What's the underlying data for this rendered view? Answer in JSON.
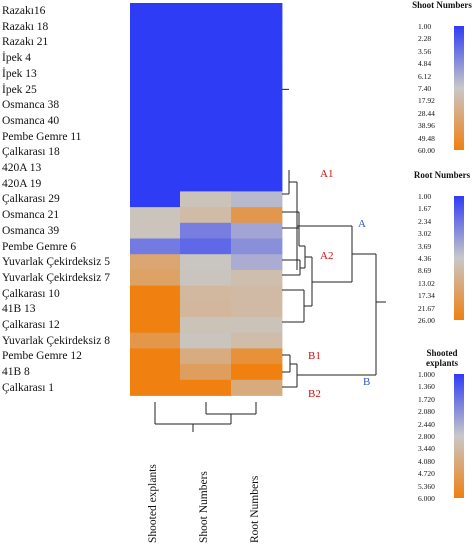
{
  "chart_data": {
    "type": "heatmap",
    "rows": [
      "Razakı16",
      "Razakı 18",
      "Razakı 21",
      "İpek 4",
      "İpek 13",
      "İpek 25",
      "Osmanca 38",
      "Osmanca 40",
      "Pembe Gemre 11",
      "Çalkarası 18",
      "420A 13",
      "420A 19",
      "Çalkarası 29",
      "Osmanca 21",
      "Osmanca 39",
      "Pembe Gemre 6",
      "Yuvarlak Çekirdeksiz 5",
      "Yuvarlak Çekirdeksiz 7",
      "Çalkarası 10",
      "41B 13",
      "Çalkarası 12",
      "Yuvarlak Çekirdeksiz 8",
      "Pembe Gemre 12",
      "41B 8",
      "Çalkarası 1"
    ],
    "columns": [
      "Shooted explants",
      "Shoot Numbers",
      "Root Numbers"
    ],
    "values": [
      [
        1.0,
        1.0,
        1.0
      ],
      [
        1.0,
        1.0,
        1.0
      ],
      [
        1.0,
        1.0,
        1.0
      ],
      [
        1.0,
        1.0,
        1.0
      ],
      [
        1.0,
        1.0,
        1.0
      ],
      [
        1.0,
        1.0,
        1.0
      ],
      [
        1.0,
        1.0,
        1.0
      ],
      [
        1.0,
        1.0,
        1.0
      ],
      [
        1.0,
        1.0,
        1.0
      ],
      [
        1.0,
        1.0,
        1.0
      ],
      [
        1.0,
        1.0,
        1.0
      ],
      [
        1.0,
        1.0,
        1.0
      ],
      [
        1.0,
        12.0,
        4.0
      ],
      [
        3.0,
        17.0,
        19.0
      ],
      [
        3.0,
        4.0,
        3.5
      ],
      [
        1.8,
        3.0,
        3.0
      ],
      [
        4.3,
        9.0,
        3.7
      ],
      [
        4.5,
        10.0,
        7.5
      ],
      [
        6.0,
        19.0,
        8.5
      ],
      [
        6.0,
        20.0,
        8.5
      ],
      [
        6.0,
        12.0,
        6.0
      ],
      [
        5.0,
        10.0,
        8.0
      ],
      [
        6.0,
        28.0,
        21.0
      ],
      [
        6.0,
        38.0,
        26.0
      ],
      [
        6.0,
        60.0,
        13.0
      ]
    ],
    "scales": [
      {
        "title": "Shoot Numbers",
        "column": 1,
        "ticks": [
          "1.00",
          "2.28",
          "3.56",
          "4.84",
          "6.12",
          "7.40",
          "17.92",
          "28.44",
          "38.96",
          "49.48",
          "60.00"
        ],
        "min": 1,
        "mid": 7.4,
        "max": 60
      },
      {
        "title": "Root Numbers",
        "column": 2,
        "ticks": [
          "1.00",
          "1.67",
          "2.34",
          "3.02",
          "3.69",
          "4.36",
          "8.69",
          "13.02",
          "17.34",
          "21.67",
          "26.00"
        ],
        "min": 1,
        "mid": 4.36,
        "max": 26
      },
      {
        "title": "Shooted explants",
        "column": 0,
        "ticks": [
          "1.000",
          "1.360",
          "1.720",
          "2.080",
          "2.440",
          "2.800",
          "3.440",
          "4.080",
          "4.720",
          "5.360",
          "6.000"
        ],
        "min": 1,
        "mid": 2.8,
        "max": 6
      }
    ],
    "colors": {
      "low": "#2f3cf5",
      "mid": "#c8c8c8",
      "high": "#f08010"
    },
    "clusters": [
      "A1",
      "A2",
      "A",
      "B1",
      "B2",
      "B"
    ],
    "cluster_colors": {
      "A1": "#cc1111",
      "A2": "#cc1111",
      "A": "#3355bb",
      "B1": "#cc1111",
      "B2": "#cc1111",
      "B": "#3355bb"
    }
  }
}
